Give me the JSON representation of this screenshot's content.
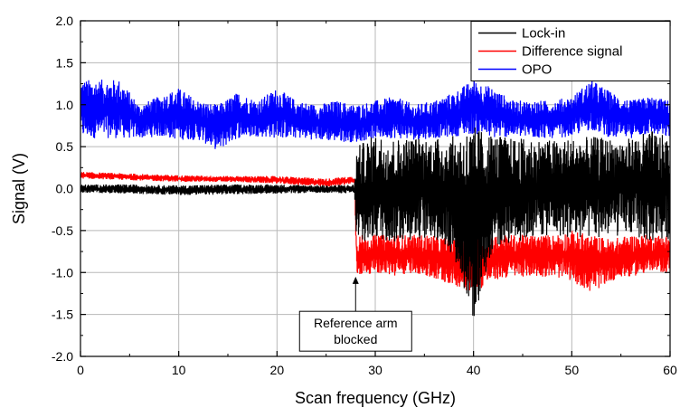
{
  "chart_data": {
    "type": "line",
    "title": "",
    "xlabel": "Scan frequency (GHz)",
    "ylabel": "Signal (V)",
    "xlim": [
      0,
      60
    ],
    "ylim": [
      -2.0,
      2.0
    ],
    "x_ticks": [
      0,
      10,
      20,
      30,
      40,
      50,
      60
    ],
    "y_ticks": [
      -2.0,
      -1.5,
      -1.0,
      -0.5,
      0.0,
      0.5,
      1.0,
      1.5,
      2.0
    ],
    "x_tick_labels": [
      "0",
      "10",
      "20",
      "30",
      "40",
      "50",
      "60"
    ],
    "y_tick_labels": [
      "-2.0",
      "-1.5",
      "-1.0",
      "-0.5",
      "0.0",
      "0.5",
      "1.0",
      "1.5",
      "2.0"
    ],
    "grid": true,
    "legend_position": "top-right",
    "series": [
      {
        "name": "Lock-in",
        "color": "#000000",
        "style": "band",
        "x": [
          0,
          5,
          10,
          15,
          20,
          25,
          27.9,
          28.1,
          30,
          32,
          34,
          36,
          38,
          40,
          42,
          44,
          46,
          48,
          50,
          52,
          54,
          56,
          58,
          60
        ],
        "upper": [
          0.05,
          0.05,
          0.04,
          0.05,
          0.05,
          0.04,
          0.05,
          0.5,
          0.65,
          0.6,
          0.62,
          0.6,
          0.63,
          0.75,
          0.65,
          0.6,
          0.6,
          0.58,
          0.6,
          0.62,
          0.6,
          0.6,
          0.7,
          0.6
        ],
        "lower": [
          -0.05,
          -0.06,
          -0.08,
          -0.07,
          -0.06,
          -0.05,
          -0.06,
          -0.75,
          -0.6,
          -0.65,
          -0.6,
          -0.6,
          -0.8,
          -1.6,
          -0.7,
          -0.65,
          -0.6,
          -0.55,
          -0.6,
          -0.6,
          -0.58,
          -0.55,
          -0.65,
          -0.6
        ]
      },
      {
        "name": "Difference signal",
        "color": "#ff0000",
        "style": "band",
        "x": [
          0,
          5,
          10,
          15,
          20,
          25,
          27.9,
          28.1,
          30,
          32,
          34,
          36,
          38,
          40,
          42,
          44,
          46,
          48,
          50,
          52,
          54,
          56,
          58,
          60
        ],
        "upper": [
          0.2,
          0.18,
          0.16,
          0.15,
          0.15,
          0.12,
          0.15,
          -0.55,
          -0.55,
          -0.55,
          -0.55,
          -0.55,
          -0.6,
          -0.6,
          -0.55,
          -0.55,
          -0.55,
          -0.55,
          -0.5,
          -0.55,
          -0.6,
          -0.55,
          -0.55,
          -0.55
        ],
        "lower": [
          0.12,
          0.1,
          0.08,
          0.08,
          0.06,
          0.02,
          0.06,
          -1.05,
          -1.0,
          -1.05,
          -1.0,
          -1.1,
          -1.15,
          -1.25,
          -1.1,
          -1.05,
          -1.05,
          -1.05,
          -1.1,
          -1.25,
          -1.1,
          -1.05,
          -1.0,
          -1.0
        ]
      },
      {
        "name": "OPO",
        "color": "#0000ff",
        "style": "band",
        "x": [
          0,
          2,
          4,
          6,
          8,
          10,
          12,
          14,
          16,
          18,
          20,
          22,
          24,
          26,
          28,
          30,
          32,
          34,
          36,
          38,
          40,
          42,
          44,
          46,
          48,
          50,
          52,
          54,
          56,
          58,
          60
        ],
        "upper": [
          1.3,
          1.3,
          1.3,
          1.0,
          1.1,
          1.2,
          1.05,
          1.0,
          1.15,
          1.05,
          1.2,
          1.05,
          1.0,
          1.05,
          1.0,
          1.05,
          1.1,
          1.0,
          1.05,
          1.15,
          1.3,
          1.2,
          1.05,
          1.05,
          1.05,
          1.1,
          1.3,
          1.15,
          1.05,
          1.1,
          1.05
        ],
        "lower": [
          0.6,
          0.6,
          0.6,
          0.6,
          0.62,
          0.58,
          0.58,
          0.45,
          0.6,
          0.62,
          0.6,
          0.6,
          0.58,
          0.56,
          0.55,
          0.6,
          0.6,
          0.58,
          0.6,
          0.62,
          0.65,
          0.6,
          0.62,
          0.6,
          0.6,
          0.62,
          0.7,
          0.6,
          0.6,
          0.65,
          0.6
        ]
      }
    ],
    "annotations": [
      {
        "text_lines": [
          "Reference arm",
          "blocked"
        ],
        "arrow_to": [
          28,
          -1.05
        ],
        "box_center": [
          28,
          -1.7
        ]
      }
    ]
  }
}
